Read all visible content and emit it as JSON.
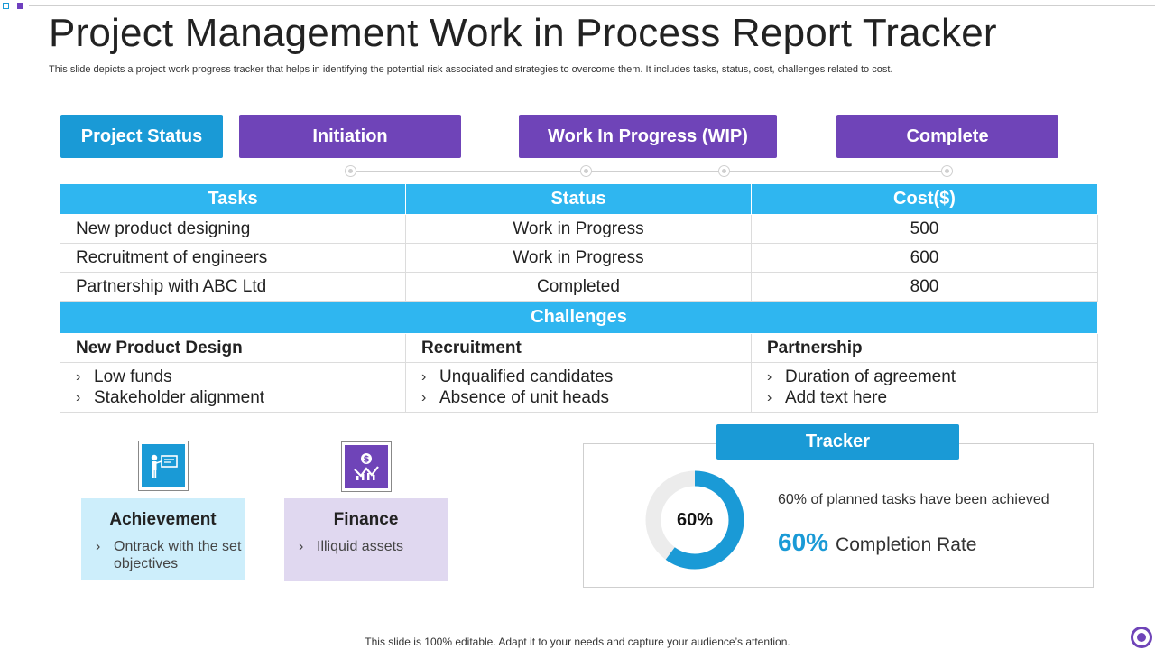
{
  "slide": {
    "title": "Project Management Work in Process Report Tracker",
    "subtitle": "This slide depicts a project work progress tracker that helps in identifying the potential risk associated and strategies to overcome them. It includes tasks, status, cost, challenges related to cost.",
    "footer": "This slide is 100% editable. Adapt it to your needs and capture your audience’s attention."
  },
  "phases": {
    "project_status": "Project Status",
    "initiation": "Initiation",
    "wip": "Work In Progress (WIP)",
    "complete": "Complete"
  },
  "table": {
    "headers": [
      "Tasks",
      "Status",
      "Cost($)"
    ],
    "rows": [
      {
        "task": "New product designing",
        "status": "Work in Progress",
        "cost": "500"
      },
      {
        "task": "Recruitment of engineers",
        "status": "Work in Progress",
        "cost": "600"
      },
      {
        "task": "Partnership with ABC Ltd",
        "status": "Completed",
        "cost": "800"
      }
    ]
  },
  "challenges": {
    "title": "Challenges",
    "columns": [
      {
        "heading": "New Product Design",
        "items": [
          "Low funds",
          "Stakeholder alignment"
        ]
      },
      {
        "heading": "Recruitment",
        "items": [
          "Unqualified candidates",
          "Absence of unit heads"
        ]
      },
      {
        "heading": "Partnership",
        "items": [
          "Duration of agreement",
          "Add text here"
        ]
      }
    ]
  },
  "cards": {
    "achievement": {
      "title": "Achievement",
      "body": "Ontrack with the set objectives",
      "icon": "presentation-icon"
    },
    "finance": {
      "title": "Finance",
      "body": "Illiquid assets",
      "icon": "money-growth-icon"
    }
  },
  "tracker": {
    "title": "Tracker",
    "percent": 60,
    "donut_label": "60%",
    "achieved_text": "60% of planned tasks have been achieved",
    "completion_value": "60%",
    "completion_label": "Completion  Rate"
  },
  "colors": {
    "blue": "#1a9ad6",
    "light_blue": "#2fb6f0",
    "purple": "#6f44b8",
    "donut_track": "#ececec"
  }
}
